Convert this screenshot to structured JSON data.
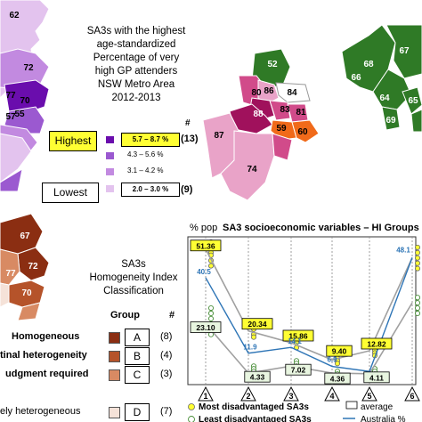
{
  "colors": {
    "purple_highest": "#6a0dad",
    "purple_2": "#9b59d0",
    "purple_3": "#c28ae0",
    "purple_lowest": "#e3c3ee",
    "magenta_dark": "#a0115c",
    "magenta_mid": "#d14b8a",
    "pink_light": "#e9a3c8",
    "orange_high": "#f06a1a",
    "green_dark": "#2f7a26",
    "brown_a": "#8b2e12",
    "brown_b": "#b5532a",
    "brown_c": "#d88a63",
    "brown_d": "#f5e2d8",
    "yellow_highlight": "#ffff33",
    "line_blue": "#2e75b6"
  },
  "top_left": {
    "title_lines": [
      "SA3s with the highest",
      "age-standardized",
      "Percentage of very",
      "high GP attenders",
      "NSW Metro Area",
      "2012-2013"
    ],
    "map_labels": [
      "62",
      "72",
      "77",
      "70",
      "55",
      "57"
    ],
    "hash": "#",
    "legend": [
      {
        "range": "5.7 – 8.7 %",
        "count": "(13)",
        "color": "#6a0dad",
        "highlight": true
      },
      {
        "range": "4.3 – 5.6 %",
        "count": "",
        "color": "#9b59d0",
        "highlight": false
      },
      {
        "range": "3.1 – 4.2 %",
        "count": "",
        "color": "#c28ae0",
        "highlight": false
      },
      {
        "range": "2.0 – 3.0 %",
        "count": "(9)",
        "color": "#e3c3ee",
        "highlight": false
      }
    ],
    "highest_label": "Highest",
    "lowest_label": "Lowest"
  },
  "top_center_map": {
    "labels": [
      "52",
      "80",
      "86",
      "84",
      "83",
      "88",
      "81",
      "59",
      "60",
      "87",
      "74"
    ]
  },
  "top_right_map": {
    "labels": [
      "66",
      "67",
      "68",
      "64",
      "69",
      "65"
    ]
  },
  "bottom_left": {
    "title_lines": [
      "SA3s",
      "Homogeneity Index",
      "Classification"
    ],
    "map_labels": [
      "67",
      "72",
      "70",
      "77"
    ],
    "group_header": "Group",
    "hash": "#",
    "groups": [
      {
        "name": "Homogeneous",
        "letter": "A",
        "count": "(8)",
        "color": "#8b2e12"
      },
      {
        "name": "tinal heterogeneity",
        "letter": "B",
        "count": "(4)",
        "color": "#b5532a"
      },
      {
        "name": "udgment required",
        "letter": "C",
        "count": "(3)",
        "color": "#d88a63"
      },
      {
        "name": "ely heterogeneous",
        "letter": "D",
        "count": "(7)",
        "color": "#f5e2d8"
      }
    ]
  },
  "chart": {
    "ylabel": "% pop",
    "title": "SA3 socioeconomic variables – HI  Groups (A,",
    "legend": {
      "most": "Most disadvantaged  SA3s",
      "least": "Least disadvantaged  SA3s",
      "average": "average",
      "australia": "Australia %"
    }
  },
  "chart_data": {
    "type": "line",
    "x": [
      "1",
      "2",
      "3",
      "4",
      "5",
      "6"
    ],
    "ylim": [
      0,
      56
    ],
    "series": [
      {
        "name": "Most disadvantaged  SA3s",
        "values": [
          51.36,
          20.34,
          15.86,
          9.4,
          12.82,
          48.1
        ]
      },
      {
        "name": "Least disadvantaged  SA3s",
        "values": [
          23.1,
          4.33,
          7.02,
          4.36,
          4.11,
          31.0
        ]
      },
      {
        "name": "Australia %",
        "values": [
          40.5,
          11.9,
          14.1,
          6.9,
          5.0,
          48.1
        ]
      }
    ],
    "labels": {
      "most": [
        "51.36",
        "20.34",
        "15.86",
        "9.40",
        "12.82",
        ""
      ],
      "least": [
        "23.10",
        "4.33",
        "7.02",
        "4.36",
        "4.11",
        ""
      ],
      "australia": [
        "40.5",
        "11.9",
        "14.1",
        "6.9",
        "",
        "48.1"
      ]
    },
    "scatter_most": [
      [
        1,
        54
      ],
      [
        1,
        52
      ],
      [
        1,
        50
      ],
      [
        1,
        49
      ],
      [
        1,
        47
      ],
      [
        1,
        45
      ],
      [
        2,
        22
      ],
      [
        2,
        21
      ],
      [
        2,
        19
      ],
      [
        2,
        18
      ],
      [
        3,
        17
      ],
      [
        3,
        16
      ],
      [
        3,
        14
      ],
      [
        4,
        10
      ],
      [
        4,
        9
      ],
      [
        4,
        8
      ],
      [
        5,
        14
      ],
      [
        5,
        13
      ],
      [
        5,
        12
      ],
      [
        5,
        11
      ],
      [
        6,
        52
      ],
      [
        6,
        50
      ],
      [
        6,
        48
      ],
      [
        6,
        46
      ],
      [
        6,
        44
      ]
    ],
    "scatter_least": [
      [
        1,
        29
      ],
      [
        1,
        27
      ],
      [
        1,
        25
      ],
      [
        1,
        23
      ],
      [
        1,
        21
      ],
      [
        1,
        19
      ],
      [
        2,
        7
      ],
      [
        2,
        6
      ],
      [
        2,
        5
      ],
      [
        2,
        4
      ],
      [
        3,
        9
      ],
      [
        3,
        8
      ],
      [
        3,
        7
      ],
      [
        3,
        6
      ],
      [
        4,
        5
      ],
      [
        4,
        4
      ],
      [
        4,
        3
      ],
      [
        5,
        6
      ],
      [
        5,
        5
      ],
      [
        5,
        4
      ],
      [
        5,
        3
      ],
      [
        6,
        33
      ],
      [
        6,
        31
      ],
      [
        6,
        29
      ],
      [
        6,
        27
      ]
    ]
  }
}
